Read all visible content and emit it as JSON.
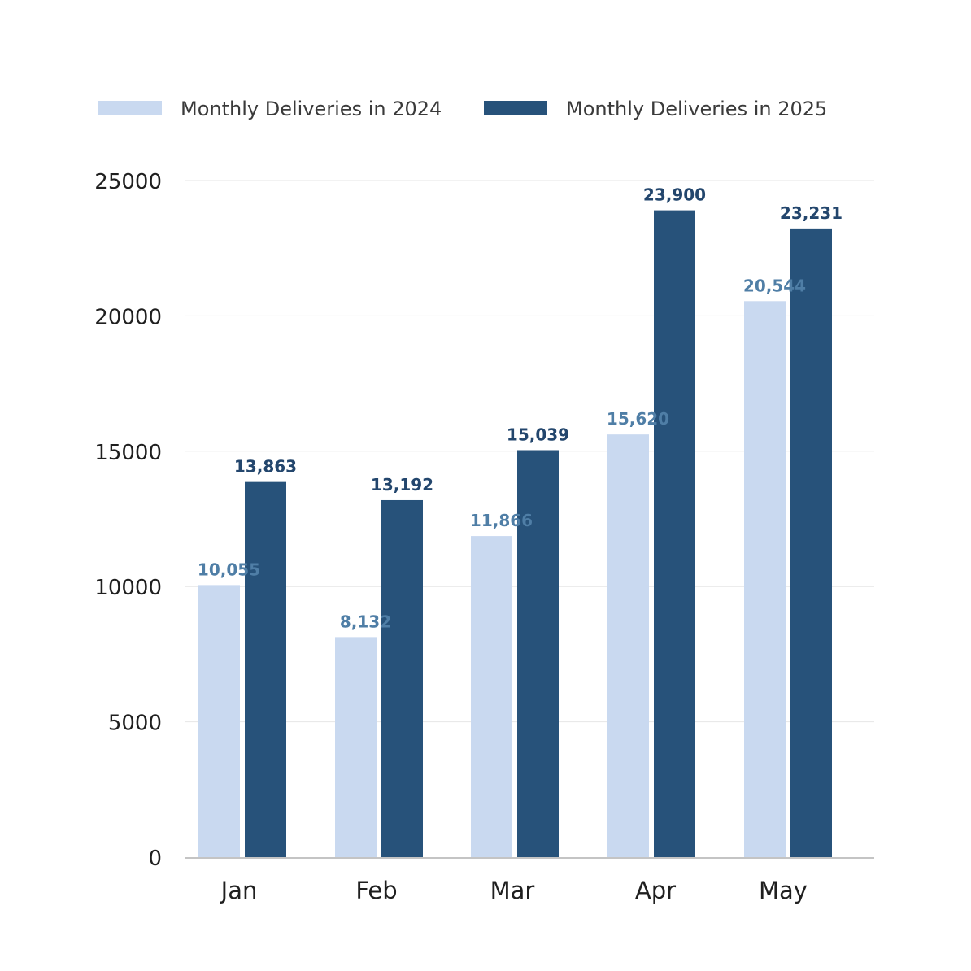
{
  "chart_data": {
    "type": "bar",
    "title": "",
    "xlabel": "",
    "ylabel": "",
    "categories": [
      "Jan",
      "Feb",
      "Mar",
      "Apr",
      "May"
    ],
    "series": [
      {
        "name": "Monthly Deliveries in 2024",
        "color": "#c9d9f0",
        "label_color": "#4f7ea6",
        "values": [
          10055,
          8132,
          11866,
          15620,
          20544
        ],
        "labels": [
          "10,055",
          "8,132",
          "11,866",
          "15,620",
          "20,544"
        ]
      },
      {
        "name": "Monthly Deliveries in 2025",
        "color": "#27527a",
        "label_color": "#23466d",
        "values": [
          13863,
          13192,
          15039,
          23900,
          23231
        ],
        "labels": [
          "13,863",
          "13,192",
          "15,039",
          "23,900",
          "23,231"
        ]
      }
    ],
    "ylim": [
      0,
      25000
    ],
    "yticks": [
      0,
      5000,
      10000,
      15000,
      20000,
      25000
    ],
    "ytick_labels": [
      "0",
      "5000",
      "10000",
      "15000",
      "20000",
      "25000"
    ],
    "grid": true,
    "legend_position": "top-left"
  }
}
